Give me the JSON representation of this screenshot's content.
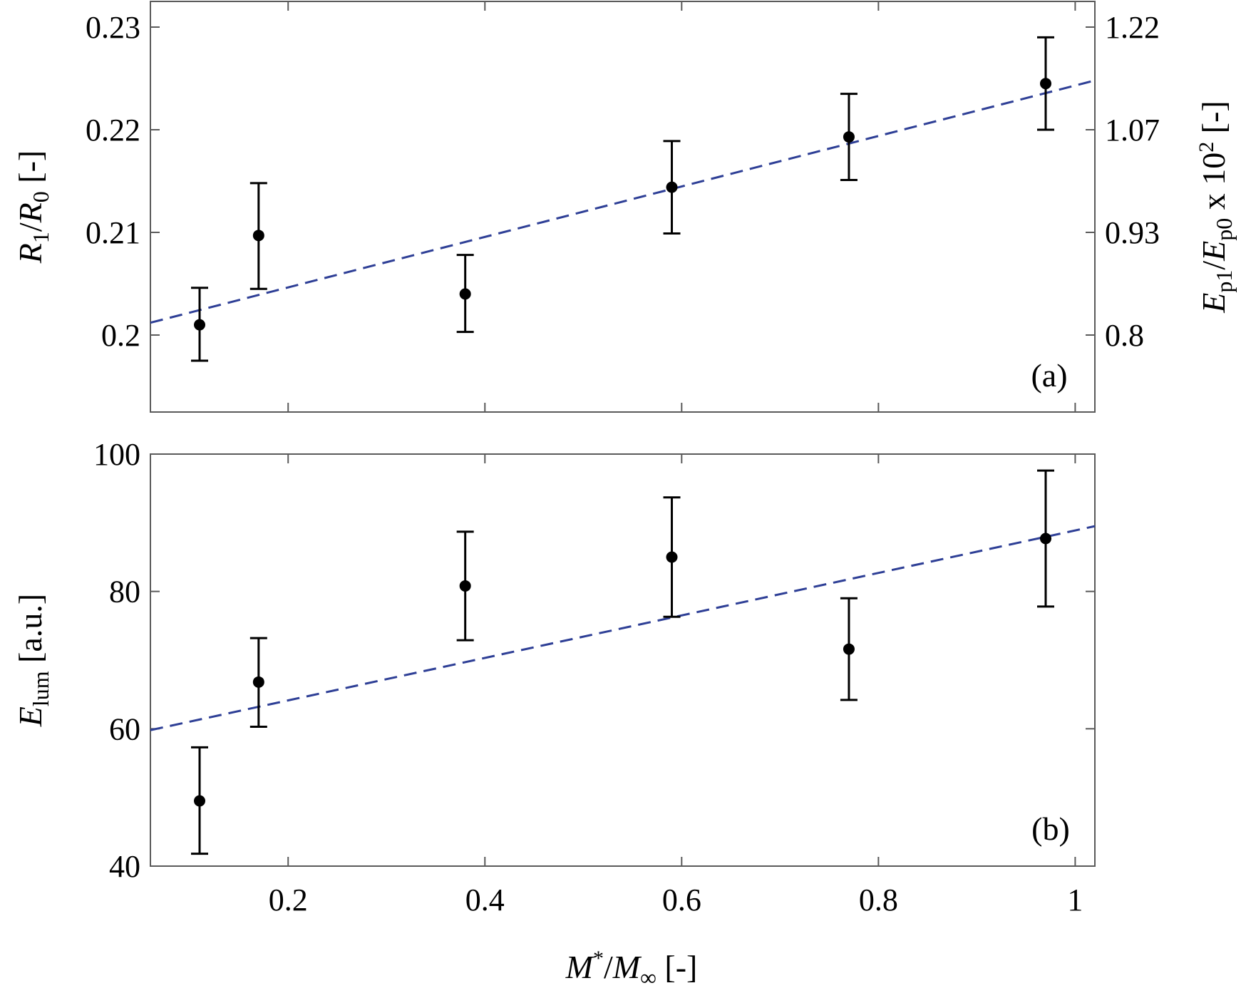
{
  "chart_data": [
    {
      "type": "scatter",
      "panel_label": "(a)",
      "xlim": [
        0.06,
        1.02
      ],
      "ylim": [
        0.1925,
        0.2325
      ],
      "xticks": [
        0.2,
        0.4,
        0.6,
        0.8,
        1
      ],
      "yticks": [
        "0.2",
        "0.21",
        "0.22",
        "0.23"
      ],
      "ylabel": {
        "main": "R",
        "sub1": "1",
        "slash": "/",
        "main2": "R",
        "sub2": "0",
        "unit": " [-]"
      },
      "ylabel_right": {
        "main": "E",
        "sub1": "p1",
        "slash": "/",
        "main2": "E",
        "sub2": "p0",
        "mid": " x 10",
        "sup": "2",
        "unit": " [-]"
      },
      "y2ticks": [
        "0.8",
        "0.93",
        "1.07",
        "1.22"
      ],
      "y2ticks_at_primary": [
        0.2,
        0.21,
        0.22,
        0.23
      ],
      "series": [
        {
          "x": [
            0.11,
            0.17,
            0.38,
            0.59,
            0.77,
            0.97
          ],
          "y": [
            0.201,
            0.2097,
            0.204,
            0.2144,
            0.2193,
            0.2245
          ],
          "yerr_low": [
            0.1975,
            0.2045,
            0.2003,
            0.2099,
            0.2151,
            0.22
          ],
          "yerr_high": [
            0.2046,
            0.2148,
            0.2078,
            0.2189,
            0.2235,
            0.229
          ]
        }
      ],
      "fit": {
        "x": [
          0.06,
          1.02
        ],
        "y": [
          0.2012,
          0.2248
        ],
        "style": "dashed",
        "color": "#2e3f96"
      }
    },
    {
      "type": "scatter",
      "panel_label": "(b)",
      "xlim": [
        0.06,
        1.02
      ],
      "ylim": [
        40,
        100
      ],
      "xticks": [
        0.2,
        0.4,
        0.6,
        0.8,
        1
      ],
      "xticklabels": [
        "0.2",
        "0.4",
        "0.6",
        "0.8",
        "1"
      ],
      "yticks": [
        "40",
        "60",
        "80",
        "100"
      ],
      "ylabel": {
        "main": "E",
        "sub": "lum",
        "unit": " [a.u.]"
      },
      "xlabel": {
        "main": "M",
        "sup": "*",
        "slash": "/",
        "main2": "M",
        "sub": "∞",
        "unit": " [-]"
      },
      "series": [
        {
          "x": [
            0.11,
            0.17,
            0.38,
            0.59,
            0.77,
            0.97
          ],
          "y": [
            49.5,
            66.8,
            80.8,
            85,
            71.6,
            87.7
          ],
          "yerr_low": [
            41.8,
            60.3,
            72.9,
            76.3,
            64.2,
            77.8
          ],
          "yerr_high": [
            57.3,
            73.2,
            88.7,
            93.7,
            79,
            97.6
          ]
        }
      ],
      "fit": {
        "x": [
          0.06,
          1.02
        ],
        "y": [
          59.8,
          89.5
        ],
        "style": "dashed",
        "color": "#2e3f96"
      }
    }
  ]
}
